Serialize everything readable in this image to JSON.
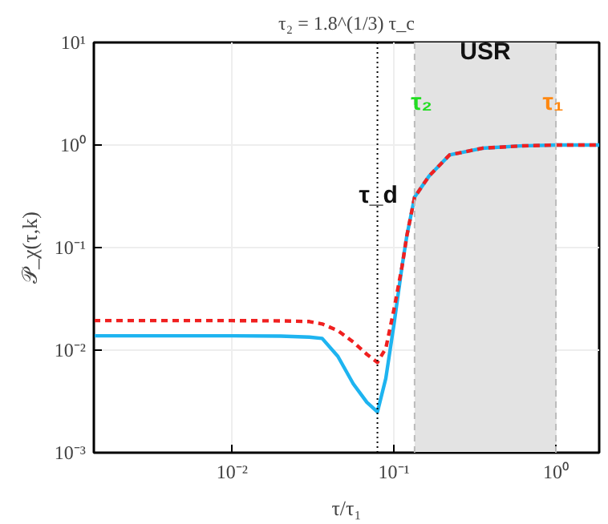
{
  "chart_data": {
    "type": "line",
    "title": "τ₂ = 1.8^(1/3) τ_c",
    "xlabel": "τ/τ₁",
    "ylabel": "𝒫_χ(τ,k)",
    "log": "xy",
    "grid": true,
    "xlim": [
      0.0014,
      1.85
    ],
    "ylim": [
      0.001,
      10
    ],
    "xticks": [
      {
        "value": 0.01,
        "label": "10⁻²"
      },
      {
        "value": 0.1,
        "label": "10⁻¹"
      },
      {
        "value": 1,
        "label": "10⁰"
      }
    ],
    "yticks": [
      {
        "value": 0.001,
        "label": "10⁻³"
      },
      {
        "value": 0.01,
        "label": "10⁻²"
      },
      {
        "value": 0.1,
        "label": "10⁻¹"
      },
      {
        "value": 1,
        "label": "10⁰"
      },
      {
        "value": 10,
        "label": "10¹"
      }
    ],
    "x": [
      0.0014,
      0.005,
      0.01,
      0.02,
      0.03,
      0.036,
      0.045,
      0.056,
      0.068,
      0.079,
      0.089,
      0.1,
      0.112,
      0.12,
      0.134,
      0.165,
      0.22,
      0.35,
      0.6,
      1.0,
      1.85
    ],
    "series": [
      {
        "color": "#1eb4f0",
        "line_style": "solid",
        "values": [
          0.0138,
          0.0138,
          0.0138,
          0.0137,
          0.0134,
          0.013,
          0.0087,
          0.0047,
          0.0031,
          0.0025,
          0.0053,
          0.018,
          0.065,
          0.13,
          0.31,
          0.5,
          0.8,
          0.93,
          0.98,
          1.0,
          1.0
        ]
      },
      {
        "color": "#f02020",
        "line_style": "dashed",
        "values": [
          0.0194,
          0.0194,
          0.0194,
          0.0193,
          0.019,
          0.018,
          0.0155,
          0.012,
          0.0091,
          0.0076,
          0.0104,
          0.025,
          0.065,
          0.13,
          0.31,
          0.5,
          0.8,
          0.93,
          0.98,
          1.0,
          1.0
        ]
      }
    ],
    "bands": [
      {
        "axis": "x",
        "from": 0.134,
        "to": 1.0,
        "color": "#e3e3e3"
      }
    ],
    "ref_lines": [
      {
        "axis": "x",
        "value": 0.079,
        "line_style": "dotted",
        "color": "#000000"
      },
      {
        "axis": "x",
        "value": 0.134,
        "line_style": "dashed",
        "color": "#bbbbbb"
      },
      {
        "axis": "x",
        "value": 1.0,
        "line_style": "dashed",
        "color": "#bbbbbb"
      }
    ],
    "annotations": [
      {
        "text": "τ₂",
        "x": 0.148,
        "y": 2.6
      },
      "USR",
      {
        "text": "τ₁",
        "x": 0.96,
        "y": 2.6
      },
      {
        "text": "τ_d",
        "x": 0.08,
        "y": 0.32
      }
    ]
  }
}
